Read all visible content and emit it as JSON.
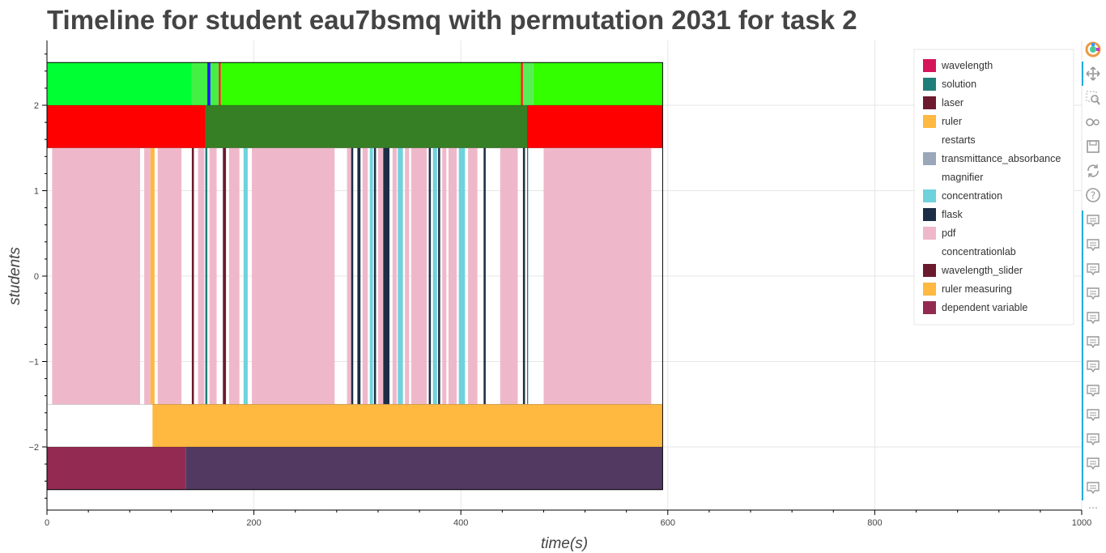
{
  "title": "Timeline for student eau7bsmq with permutation 2031 for task 2",
  "chart_data": {
    "type": "timeline",
    "title": "Timeline for student eau7bsmq with permutation 2031 for task 2",
    "xlabel": "time(s)",
    "ylabel": "students",
    "xlim": [
      0,
      1000
    ],
    "ylim": [
      -2.75,
      2.75
    ],
    "x_ticks": [
      0,
      200,
      400,
      600,
      800,
      1000
    ],
    "y_ticks": [
      -2,
      -1,
      0,
      1,
      2
    ],
    "y_tick_labels": [
      "−2",
      "−1",
      "0",
      "1",
      "2"
    ],
    "grid": true,
    "legend_position": "top-right",
    "legend": [
      {
        "label": "wavelength",
        "color": "#d6145a"
      },
      {
        "label": "solution",
        "color": "#1f7f78"
      },
      {
        "label": "laser",
        "color": "#6e1a2e"
      },
      {
        "label": "ruler",
        "color": "#ffb840"
      },
      {
        "label": "restarts",
        "color": "#ffffff"
      },
      {
        "label": "transmittance_absorbance",
        "color": "#9aa7b8"
      },
      {
        "label": "magnifier",
        "color": "#ffffff"
      },
      {
        "label": "concentration",
        "color": "#6fd2dc"
      },
      {
        "label": "flask",
        "color": "#1c2e45"
      },
      {
        "label": "pdf",
        "color": "#efb8ca"
      },
      {
        "label": "concentrationlab",
        "color": "#ffffff"
      },
      {
        "label": "wavelength_slider",
        "color": "#6b1a2e"
      },
      {
        "label": "ruler measuring",
        "color": "#ffb840"
      },
      {
        "label": "dependent variable",
        "color": "#922a52"
      }
    ],
    "rows": [
      {
        "y0": 2.0,
        "y1": 2.5,
        "segments": [
          {
            "x0": 0,
            "x1": 140,
            "color": "#00ff33"
          },
          {
            "x0": 140,
            "x1": 155,
            "color": "#44f044"
          },
          {
            "x0": 155,
            "x1": 158,
            "color": "#1a1aff"
          },
          {
            "x0": 158,
            "x1": 166,
            "color": "#44f044"
          },
          {
            "x0": 166,
            "x1": 168,
            "color": "#ff1a1a"
          },
          {
            "x0": 168,
            "x1": 458,
            "color": "#33ff00"
          },
          {
            "x0": 458,
            "x1": 460,
            "color": "#ff1a1a"
          },
          {
            "x0": 460,
            "x1": 470,
            "color": "#55f055"
          },
          {
            "x0": 470,
            "x1": 595,
            "color": "#33ff00"
          }
        ]
      },
      {
        "y0": 1.5,
        "y1": 2.0,
        "segments": [
          {
            "x0": 0,
            "x1": 153,
            "color": "#ff0000"
          },
          {
            "x0": 153,
            "x1": 464,
            "color": "#367f24"
          },
          {
            "x0": 464,
            "x1": 595,
            "color": "#ff0000"
          }
        ]
      },
      {
        "y0": -1.5,
        "y1": 1.5,
        "segments": [
          {
            "x0": 5,
            "x1": 90,
            "color": "#efb8ca"
          },
          {
            "x0": 94,
            "x1": 100,
            "color": "#efb8ca"
          },
          {
            "x0": 100,
            "x1": 104,
            "color": "#ffb840"
          },
          {
            "x0": 107,
            "x1": 130,
            "color": "#efb8ca"
          },
          {
            "x0": 140,
            "x1": 142,
            "color": "#6b1a2e"
          },
          {
            "x0": 146,
            "x1": 152,
            "color": "#efb8ca"
          },
          {
            "x0": 153,
            "x1": 155,
            "color": "#1f7f78"
          },
          {
            "x0": 157,
            "x1": 164,
            "color": "#efb8ca"
          },
          {
            "x0": 170,
            "x1": 173,
            "color": "#6b1a2e"
          },
          {
            "x0": 176,
            "x1": 186,
            "color": "#efb8ca"
          },
          {
            "x0": 190,
            "x1": 194,
            "color": "#6fd2dc"
          },
          {
            "x0": 198,
            "x1": 278,
            "color": "#efb8ca"
          },
          {
            "x0": 290,
            "x1": 294,
            "color": "#efb8ca"
          },
          {
            "x0": 294,
            "x1": 296,
            "color": "#1c2e45"
          },
          {
            "x0": 300,
            "x1": 303,
            "color": "#1c2e45"
          },
          {
            "x0": 305,
            "x1": 310,
            "color": "#efb8ca"
          },
          {
            "x0": 312,
            "x1": 315,
            "color": "#6fd2dc"
          },
          {
            "x0": 316,
            "x1": 318,
            "color": "#1c2e45"
          },
          {
            "x0": 320,
            "x1": 325,
            "color": "#efb8ca"
          },
          {
            "x0": 325,
            "x1": 331,
            "color": "#1c2e45"
          },
          {
            "x0": 334,
            "x1": 338,
            "color": "#efb8ca"
          },
          {
            "x0": 339,
            "x1": 344,
            "color": "#6fd2dc"
          },
          {
            "x0": 346,
            "x1": 350,
            "color": "#efb8ca"
          },
          {
            "x0": 352,
            "x1": 367,
            "color": "#efb8ca"
          },
          {
            "x0": 369,
            "x1": 371,
            "color": "#1c2e45"
          },
          {
            "x0": 373,
            "x1": 377,
            "color": "#6fd2dc"
          },
          {
            "x0": 378,
            "x1": 380,
            "color": "#1c2e45"
          },
          {
            "x0": 382,
            "x1": 386,
            "color": "#efb8ca"
          },
          {
            "x0": 388,
            "x1": 396,
            "color": "#efb8ca"
          },
          {
            "x0": 398,
            "x1": 404,
            "color": "#6fd2dc"
          },
          {
            "x0": 407,
            "x1": 416,
            "color": "#efb8ca"
          },
          {
            "x0": 422,
            "x1": 424,
            "color": "#1c2e45"
          },
          {
            "x0": 438,
            "x1": 455,
            "color": "#efb8ca"
          },
          {
            "x0": 460,
            "x1": 462,
            "color": "#1c2e45"
          },
          {
            "x0": 464,
            "x1": 465,
            "color": "#1f7f78"
          },
          {
            "x0": 480,
            "x1": 584,
            "color": "#efb8ca"
          }
        ]
      },
      {
        "y0": -2.0,
        "y1": -1.5,
        "segments": [
          {
            "x0": 102,
            "x1": 595,
            "color": "#ffb840"
          }
        ]
      },
      {
        "y0": -2.5,
        "y1": -2.0,
        "segments": [
          {
            "x0": 0,
            "x1": 134,
            "color": "#922a52"
          },
          {
            "x0": 134,
            "x1": 595,
            "color": "#513961"
          }
        ]
      }
    ],
    "outlined_box": {
      "x0": 0,
      "x1": 595,
      "y0": -2.5,
      "y1": 2.5
    }
  },
  "toolbar": {
    "tools": [
      {
        "name": "bokeh-logo-icon"
      },
      {
        "name": "pan-icon"
      },
      {
        "name": "box-zoom-icon"
      },
      {
        "name": "wheel-zoom-icon"
      },
      {
        "name": "save-icon"
      },
      {
        "name": "reset-icon"
      },
      {
        "name": "help-icon"
      },
      {
        "name": "hover-icon"
      },
      {
        "name": "hover-icon"
      },
      {
        "name": "hover-icon"
      },
      {
        "name": "hover-icon"
      },
      {
        "name": "hover-icon"
      },
      {
        "name": "hover-icon"
      },
      {
        "name": "hover-icon"
      },
      {
        "name": "hover-icon"
      },
      {
        "name": "hover-icon"
      },
      {
        "name": "hover-icon"
      },
      {
        "name": "hover-icon"
      },
      {
        "name": "hover-icon"
      }
    ],
    "more_label": "⋯",
    "accent_color": "#26aae1"
  }
}
